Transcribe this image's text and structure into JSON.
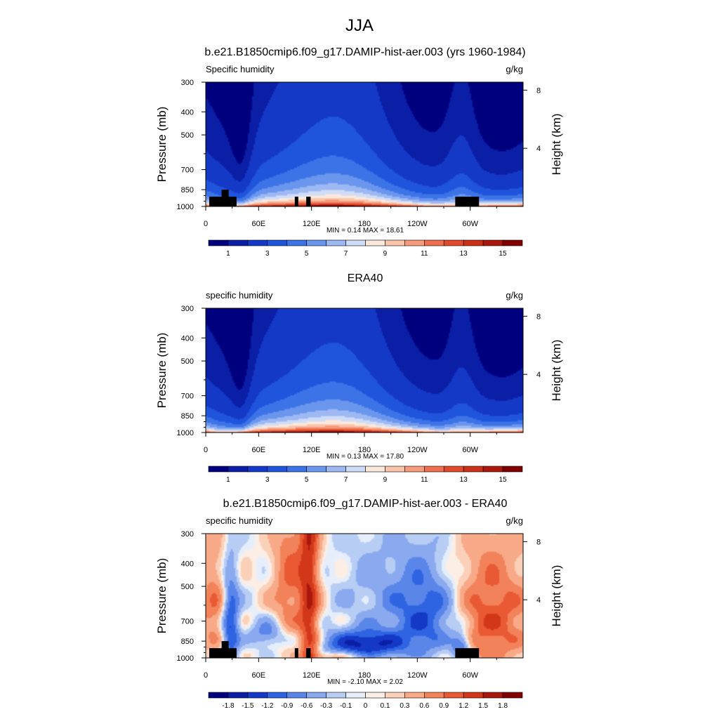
{
  "figure": {
    "title": "JJA"
  },
  "colors": {
    "humidity_palette": [
      "#00007f",
      "#0b1ea6",
      "#1539c7",
      "#1f55dc",
      "#3c73e6",
      "#6b96ee",
      "#9db8f2",
      "#cfdcf7",
      "#fbe8dc",
      "#f9c4a9",
      "#f59b7c",
      "#ee6e4f",
      "#e24a2d",
      "#cb3119",
      "#a8180d",
      "#800000"
    ],
    "diff_palette": [
      "#00007f",
      "#0b1ea6",
      "#1539c7",
      "#2e63e2",
      "#5a86ea",
      "#8aa9ef",
      "#b8cdf4",
      "#e6eefb",
      "#fdeee5",
      "#fbd0b9",
      "#f8aa88",
      "#f28259",
      "#e95a34",
      "#d23719",
      "#a8180d",
      "#800000"
    ],
    "terrain": "#000000"
  },
  "chart_data": [
    {
      "type": "heatmap",
      "title": "b.e21.B1850cmip6.f09_g17.DAMIP-hist-aer.003 (yrs 1960-1984)",
      "left_label": "Specific humidity",
      "right_label": "g/kg",
      "ylabel": "Pressure (mb)",
      "ylabel_right": "Height (km)",
      "y_ticks": [
        "300",
        "400",
        "500",
        "700",
        "850",
        "1000"
      ],
      "y_right_ticks": [
        "8",
        "4"
      ],
      "x_ticks": [
        "0",
        "60E",
        "120E",
        "180",
        "120W",
        "60W"
      ],
      "ylim": [
        1000,
        300
      ],
      "xlim": [
        0,
        360
      ],
      "min_max_text": "MIN =   0.14  MAX =  18.61",
      "colorbar_labels": [
        "1",
        "3",
        "5",
        "7",
        "9",
        "11",
        "13",
        "15"
      ]
    },
    {
      "type": "heatmap",
      "title": "ERA40",
      "left_label": "specific humidity",
      "right_label": "g/kg",
      "ylabel": "Pressure (mb)",
      "ylabel_right": "Height (km)",
      "y_ticks": [
        "300",
        "400",
        "500",
        "700",
        "850",
        "1000"
      ],
      "y_right_ticks": [
        "8",
        "4"
      ],
      "x_ticks": [
        "0",
        "60E",
        "120E",
        "180",
        "120W",
        "60W"
      ],
      "ylim": [
        1000,
        300
      ],
      "xlim": [
        0,
        360
      ],
      "min_max_text": "MIN =   0.13  MAX =  17.80",
      "colorbar_labels": [
        "1",
        "3",
        "5",
        "7",
        "9",
        "11",
        "13",
        "15"
      ]
    },
    {
      "type": "heatmap",
      "title": "b.e21.B1850cmip6.f09_g17.DAMIP-hist-aer.003 - ERA40",
      "left_label": "specific humidity",
      "right_label": "g/kg",
      "ylabel": "Pressure (mb)",
      "ylabel_right": "Height (km)",
      "y_ticks": [
        "300",
        "400",
        "500",
        "700",
        "850",
        "1000"
      ],
      "y_right_ticks": [
        "8",
        "4"
      ],
      "x_ticks": [
        "0",
        "60E",
        "120E",
        "180",
        "120W",
        "60W"
      ],
      "ylim": [
        1000,
        300
      ],
      "xlim": [
        0,
        360
      ],
      "min_max_text": "MIN =  -2.10  MAX =   2.02",
      "colorbar_labels": [
        "-1.8",
        "-1.5",
        "-1.2",
        "-0.9",
        "-0.6",
        "-0.3",
        "-0.1",
        "0",
        "0.1",
        "0.3",
        "0.6",
        "0.9",
        "1.2",
        "1.5",
        "1.8"
      ]
    }
  ]
}
